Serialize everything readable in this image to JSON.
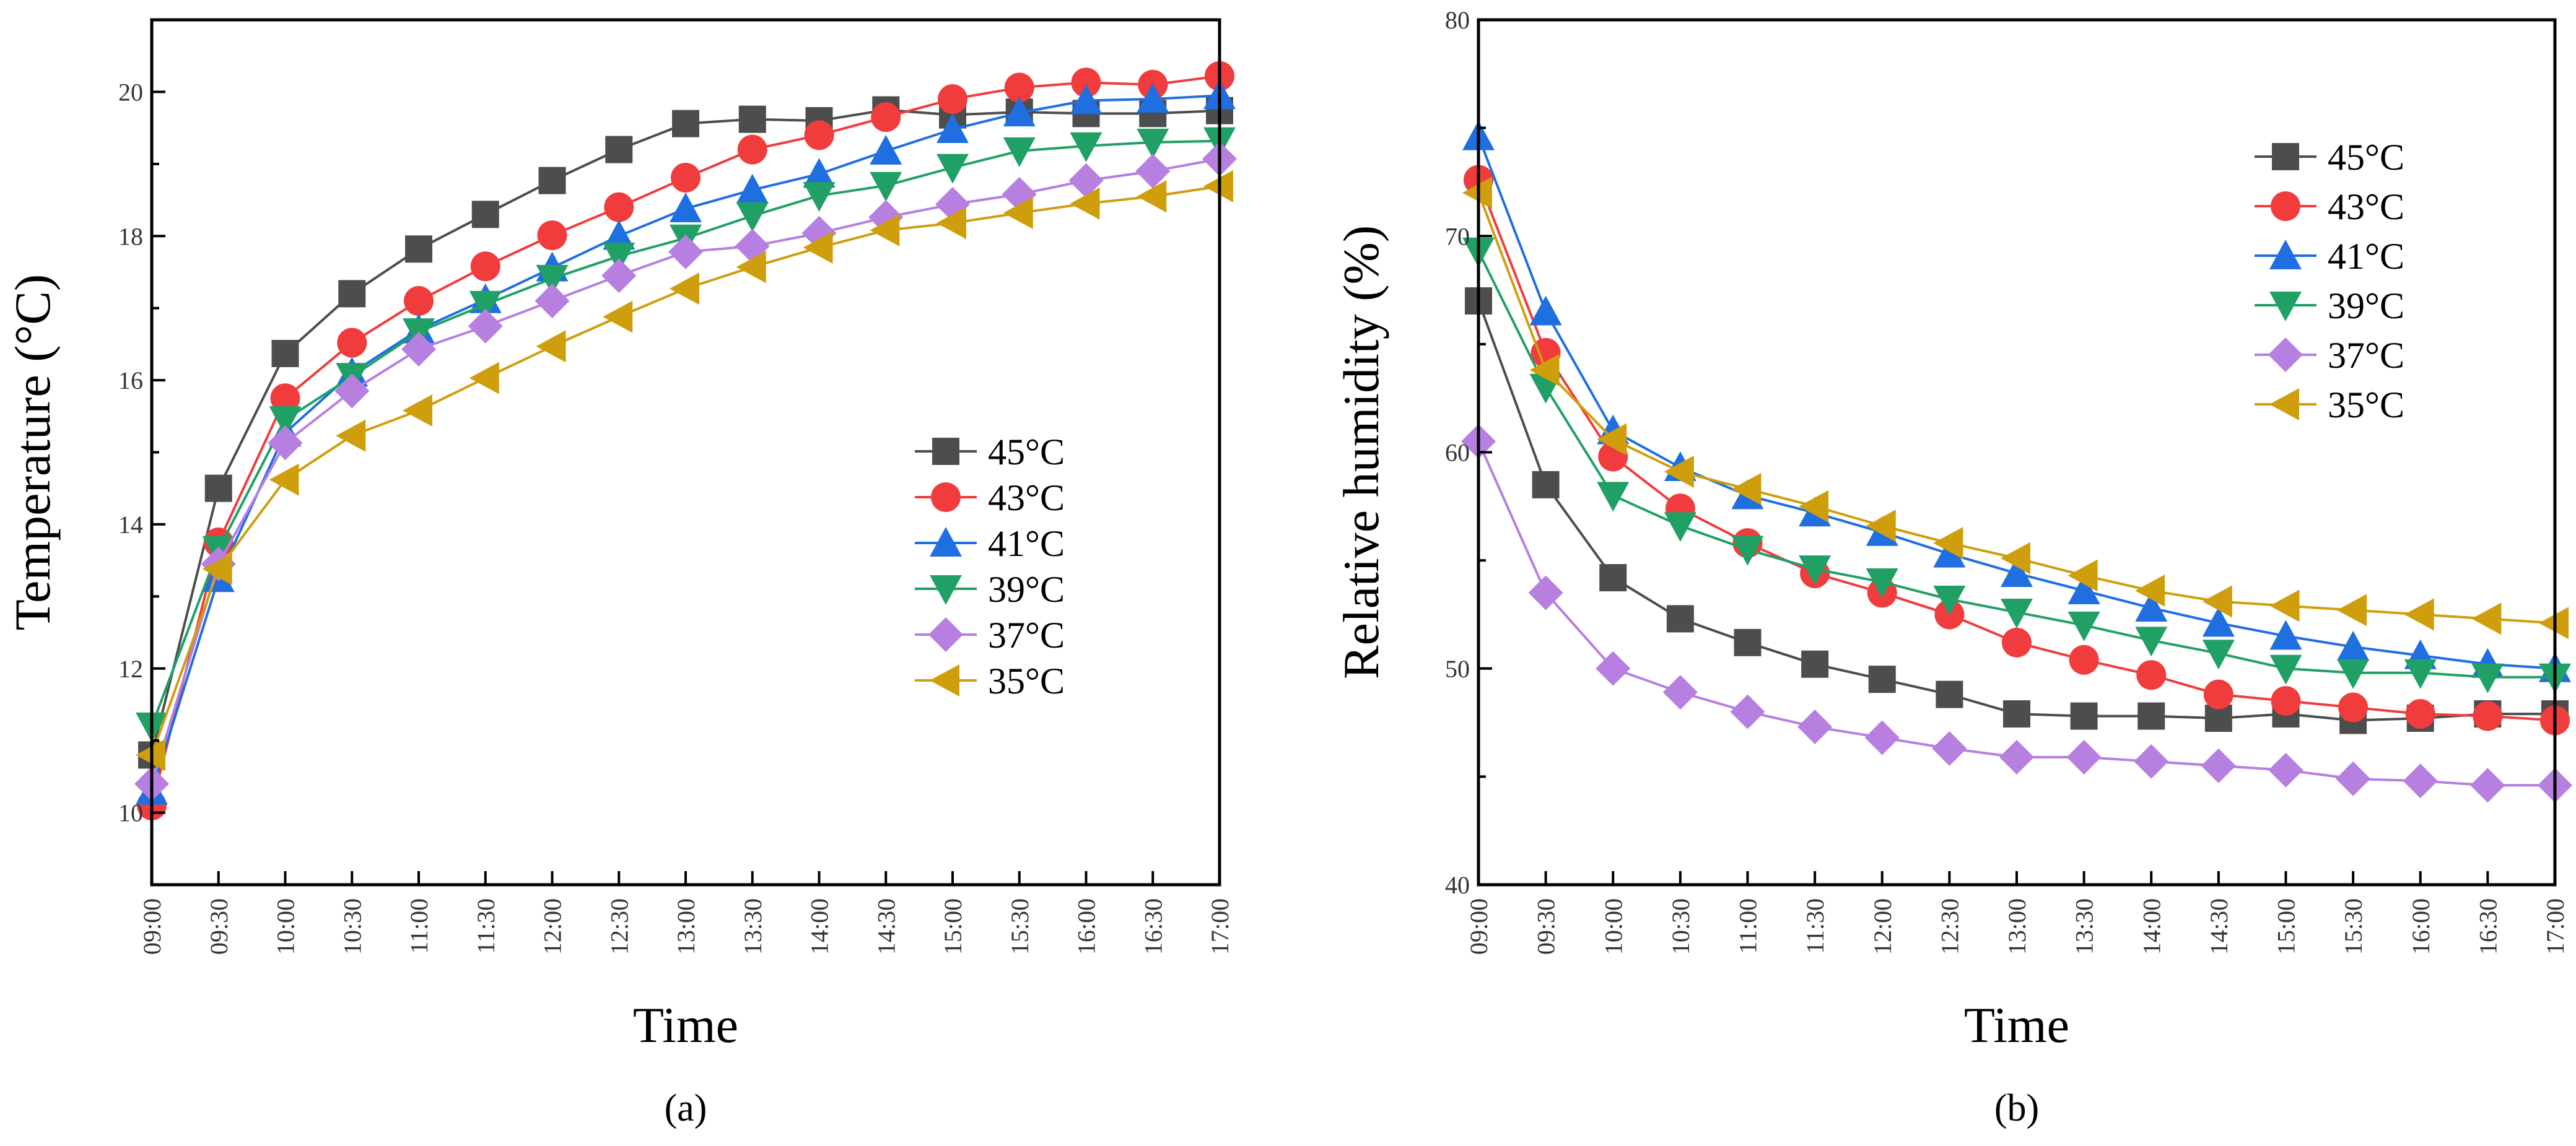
{
  "chart_data": [
    {
      "type": "line",
      "panel_label": "(a)",
      "panel_letter": "a",
      "xlabel": "Time",
      "ylabel": "Temperature (°C)",
      "ylim": [
        9,
        21
      ],
      "yticks": [
        10,
        12,
        14,
        16,
        18,
        20
      ],
      "grid": false,
      "legend_position": "center-right",
      "x": [
        "09:00",
        "09:30",
        "10:00",
        "10:30",
        "11:00",
        "11:30",
        "12:00",
        "12:30",
        "13:00",
        "13:30",
        "14:00",
        "14:30",
        "15:00",
        "15:30",
        "16:00",
        "16:30",
        "17:00"
      ],
      "series": [
        {
          "name": "45°C",
          "color": "#4d4d4d",
          "marker": "square",
          "values": [
            10.8,
            14.5,
            16.37,
            17.2,
            17.82,
            18.3,
            18.77,
            19.2,
            19.56,
            19.62,
            19.6,
            19.75,
            19.68,
            19.72,
            19.7,
            19.7,
            19.74
          ]
        },
        {
          "name": "43°C",
          "color": "#f03c3c",
          "marker": "circle",
          "values": [
            10.1,
            13.75,
            15.75,
            16.52,
            17.1,
            17.58,
            18.01,
            18.4,
            18.81,
            19.2,
            19.4,
            19.65,
            19.9,
            20.06,
            20.13,
            20.1,
            20.22
          ]
        },
        {
          "name": "41°C",
          "color": "#1f6fe0",
          "marker": "triangle-up",
          "values": [
            10.3,
            13.25,
            15.27,
            16.1,
            16.7,
            17.12,
            17.56,
            18.0,
            18.38,
            18.64,
            18.86,
            19.18,
            19.48,
            19.71,
            19.88,
            19.9,
            19.95
          ]
        },
        {
          "name": "39°C",
          "color": "#21a065",
          "marker": "triangle-down",
          "values": [
            11.2,
            13.65,
            15.45,
            16.05,
            16.67,
            17.05,
            17.41,
            17.72,
            17.97,
            18.28,
            18.56,
            18.7,
            18.95,
            19.18,
            19.25,
            19.3,
            19.32
          ]
        },
        {
          "name": "37°C",
          "color": "#b77fe0",
          "marker": "diamond",
          "values": [
            10.4,
            13.45,
            15.13,
            15.85,
            16.43,
            16.75,
            17.1,
            17.45,
            17.78,
            17.86,
            18.04,
            18.26,
            18.44,
            18.58,
            18.77,
            18.9,
            19.07
          ]
        },
        {
          "name": "35°C",
          "color": "#cf9e0d",
          "marker": "triangle-left",
          "values": [
            10.8,
            13.38,
            14.62,
            15.23,
            15.58,
            16.03,
            16.47,
            16.88,
            17.27,
            17.57,
            17.84,
            18.08,
            18.18,
            18.32,
            18.45,
            18.55,
            18.69
          ]
        }
      ]
    },
    {
      "type": "line",
      "panel_label": "(b)",
      "panel_letter": "b",
      "xlabel": "Time",
      "ylabel": "Relative humidity (%)",
      "ylim": [
        40,
        80
      ],
      "yticks": [
        40,
        50,
        60,
        70,
        80
      ],
      "grid": false,
      "legend_position": "top-right",
      "x": [
        "09:00",
        "09:30",
        "10:00",
        "10:30",
        "11:00",
        "11:30",
        "12:00",
        "12:30",
        "13:00",
        "13:30",
        "14:00",
        "14:30",
        "15:00",
        "15:30",
        "16:00",
        "16:30",
        "17:00"
      ],
      "series": [
        {
          "name": "45°C",
          "color": "#4d4d4d",
          "marker": "square",
          "values": [
            67.0,
            58.5,
            54.2,
            52.3,
            51.2,
            50.2,
            49.5,
            48.8,
            47.9,
            47.8,
            47.8,
            47.7,
            47.9,
            47.6,
            47.7,
            47.9,
            47.9
          ]
        },
        {
          "name": "43°C",
          "color": "#f03c3c",
          "marker": "circle",
          "values": [
            72.6,
            64.6,
            59.8,
            57.4,
            55.8,
            54.4,
            53.5,
            52.5,
            51.2,
            50.4,
            49.7,
            48.8,
            48.5,
            48.2,
            47.9,
            47.8,
            47.6
          ]
        },
        {
          "name": "41°C",
          "color": "#1f6fe0",
          "marker": "triangle-up",
          "values": [
            74.6,
            66.5,
            61.0,
            59.3,
            58.0,
            57.2,
            56.3,
            55.3,
            54.4,
            53.6,
            52.8,
            52.1,
            51.5,
            51.0,
            50.6,
            50.2,
            50.0
          ]
        },
        {
          "name": "39°C",
          "color": "#21a065",
          "marker": "triangle-down",
          "values": [
            69.3,
            63.0,
            58.0,
            56.6,
            55.5,
            54.6,
            54.0,
            53.2,
            52.6,
            52.0,
            51.3,
            50.7,
            50.0,
            49.8,
            49.8,
            49.6,
            49.6
          ]
        },
        {
          "name": "37°C",
          "color": "#b77fe0",
          "marker": "diamond",
          "values": [
            60.5,
            53.5,
            50.0,
            48.9,
            48.0,
            47.3,
            46.8,
            46.3,
            45.9,
            45.9,
            45.7,
            45.5,
            45.3,
            44.9,
            44.8,
            44.6,
            44.6
          ]
        },
        {
          "name": "35°C",
          "color": "#cf9e0d",
          "marker": "triangle-left",
          "values": [
            72.0,
            63.8,
            60.6,
            59.1,
            58.3,
            57.5,
            56.6,
            55.8,
            55.1,
            54.3,
            53.6,
            53.1,
            52.9,
            52.7,
            52.5,
            52.3,
            52.1
          ]
        }
      ]
    }
  ]
}
